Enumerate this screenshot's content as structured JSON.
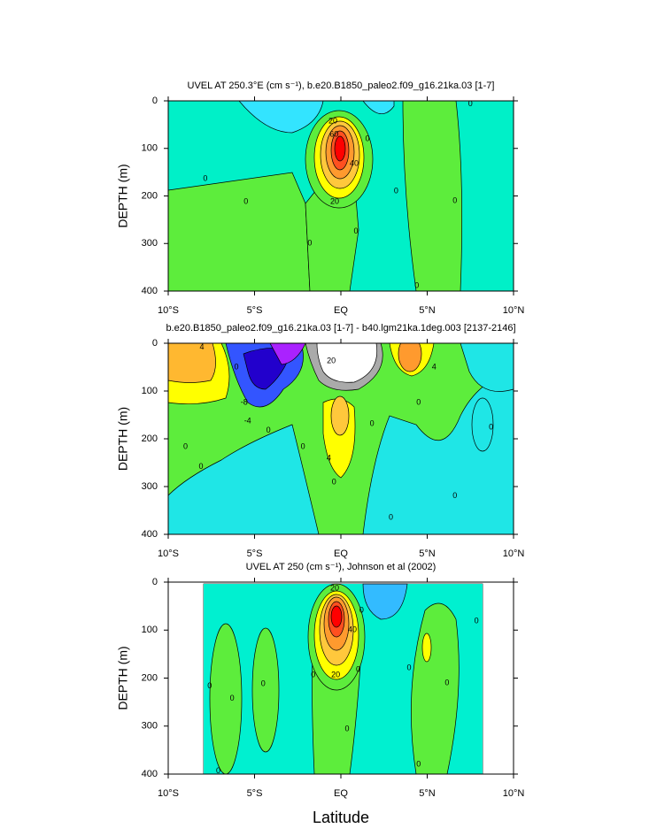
{
  "chart_data": [
    {
      "type": "contour",
      "title": "UVEL AT 250.3°E (cm s⁻¹), b.e20.B1850_paleo2.f09_g16.21ka.03 [1-7]",
      "ylabel": "DEPTH (m)",
      "xlim": [
        -10,
        10
      ],
      "ylim": [
        400,
        0
      ],
      "xticks": [
        {
          "value": -10,
          "label": "10°S"
        },
        {
          "value": -5,
          "label": "5°S"
        },
        {
          "value": 0,
          "label": "EQ"
        },
        {
          "value": 5,
          "label": "5°N"
        },
        {
          "value": 10,
          "label": "10°N"
        }
      ],
      "yticks": [
        0,
        100,
        200,
        300,
        400
      ],
      "contour_labels": [
        {
          "value": 0,
          "x": -7.85,
          "y": 164
        },
        {
          "value": 0,
          "x": -5.5,
          "y": 212
        },
        {
          "value": 20,
          "x": -0.46,
          "y": 43
        },
        {
          "value": 0,
          "x": 1.54,
          "y": 80
        },
        {
          "value": 60,
          "x": -0.4,
          "y": 71
        },
        {
          "value": 40,
          "x": 0.77,
          "y": 132
        },
        {
          "value": 20,
          "x": -0.36,
          "y": 212
        },
        {
          "value": 0,
          "x": -1.8,
          "y": 300
        },
        {
          "value": 0,
          "x": 0.87,
          "y": 275
        },
        {
          "value": 0,
          "x": 3.2,
          "y": 190
        },
        {
          "value": 0,
          "x": 7.5,
          "y": 7
        },
        {
          "value": 0,
          "x": 6.6,
          "y": 210
        },
        {
          "value": 0,
          "x": 4.4,
          "y": 389
        }
      ]
    },
    {
      "type": "contour",
      "title": "b.e20.B1850_paleo2.f09_g16.21ka.03 [1-7] - b40.lgm21ka.1deg.003 [2137-2146]",
      "ylabel": "DEPTH (m)",
      "xlim": [
        -10,
        10
      ],
      "ylim": [
        400,
        0
      ],
      "xticks": [
        {
          "value": -10,
          "label": "10°S"
        },
        {
          "value": -5,
          "label": "5°S"
        },
        {
          "value": 0,
          "label": "EQ"
        },
        {
          "value": 5,
          "label": "5°N"
        },
        {
          "value": 10,
          "label": "10°N"
        }
      ],
      "yticks": [
        0,
        100,
        200,
        300,
        400
      ],
      "contour_labels": [
        {
          "value": 4,
          "x": -8.05,
          "y": 9
        },
        {
          "value": 0,
          "x": -6.05,
          "y": 50
        },
        {
          "value": -8,
          "x": -5.6,
          "y": 124
        },
        {
          "value": -4,
          "x": -5.4,
          "y": 163
        },
        {
          "value": 20,
          "x": -0.56,
          "y": 37
        },
        {
          "value": 0,
          "x": -4.2,
          "y": 183
        },
        {
          "value": 0,
          "x": -2.2,
          "y": 217
        },
        {
          "value": 4,
          "x": -0.7,
          "y": 241
        },
        {
          "value": 0,
          "x": -0.4,
          "y": 291
        },
        {
          "value": 0,
          "x": 1.8,
          "y": 169
        },
        {
          "value": 0,
          "x": 4.5,
          "y": 124
        },
        {
          "value": 4,
          "x": 5.4,
          "y": 50
        },
        {
          "value": 0,
          "x": 8.7,
          "y": 176
        },
        {
          "value": 0,
          "x": -9.0,
          "y": 217
        },
        {
          "value": 0,
          "x": -8.1,
          "y": 259
        },
        {
          "value": 0,
          "x": 6.6,
          "y": 320
        },
        {
          "value": 0,
          "x": 2.9,
          "y": 365
        }
      ]
    },
    {
      "type": "contour",
      "title": "UVEL AT 250 (cm s⁻¹), Johnson et al (2002)",
      "ylabel": "DEPTH (m)",
      "xlabel": "Latitude",
      "xlim": [
        -10,
        10
      ],
      "ylim": [
        400,
        0
      ],
      "xticks": [
        {
          "value": -10,
          "label": "10°S"
        },
        {
          "value": -5,
          "label": "5°S"
        },
        {
          "value": 0,
          "label": "EQ"
        },
        {
          "value": 5,
          "label": "5°N"
        },
        {
          "value": 10,
          "label": "10°N"
        }
      ],
      "yticks": [
        0,
        100,
        200,
        300,
        400
      ],
      "contour_labels": [
        {
          "value": 20,
          "x": -0.36,
          "y": 13
        },
        {
          "value": 0,
          "x": 1.2,
          "y": 59
        },
        {
          "value": 40,
          "x": 0.67,
          "y": 100
        },
        {
          "value": 20,
          "x": -0.3,
          "y": 194
        },
        {
          "value": 0,
          "x": -1.6,
          "y": 194
        },
        {
          "value": 0,
          "x": 1.0,
          "y": 183
        },
        {
          "value": 0,
          "x": -7.6,
          "y": 217
        },
        {
          "value": 0,
          "x": -6.3,
          "y": 243
        },
        {
          "value": 0,
          "x": -4.5,
          "y": 212
        },
        {
          "value": 0,
          "x": 0.36,
          "y": 306
        },
        {
          "value": 0,
          "x": 3.95,
          "y": 179
        },
        {
          "value": 0,
          "x": 6.15,
          "y": 210
        },
        {
          "value": 0,
          "x": 7.85,
          "y": 81
        },
        {
          "value": 0,
          "x": 4.5,
          "y": 380
        },
        {
          "value": 0,
          "x": -7.1,
          "y": 394
        }
      ]
    }
  ]
}
